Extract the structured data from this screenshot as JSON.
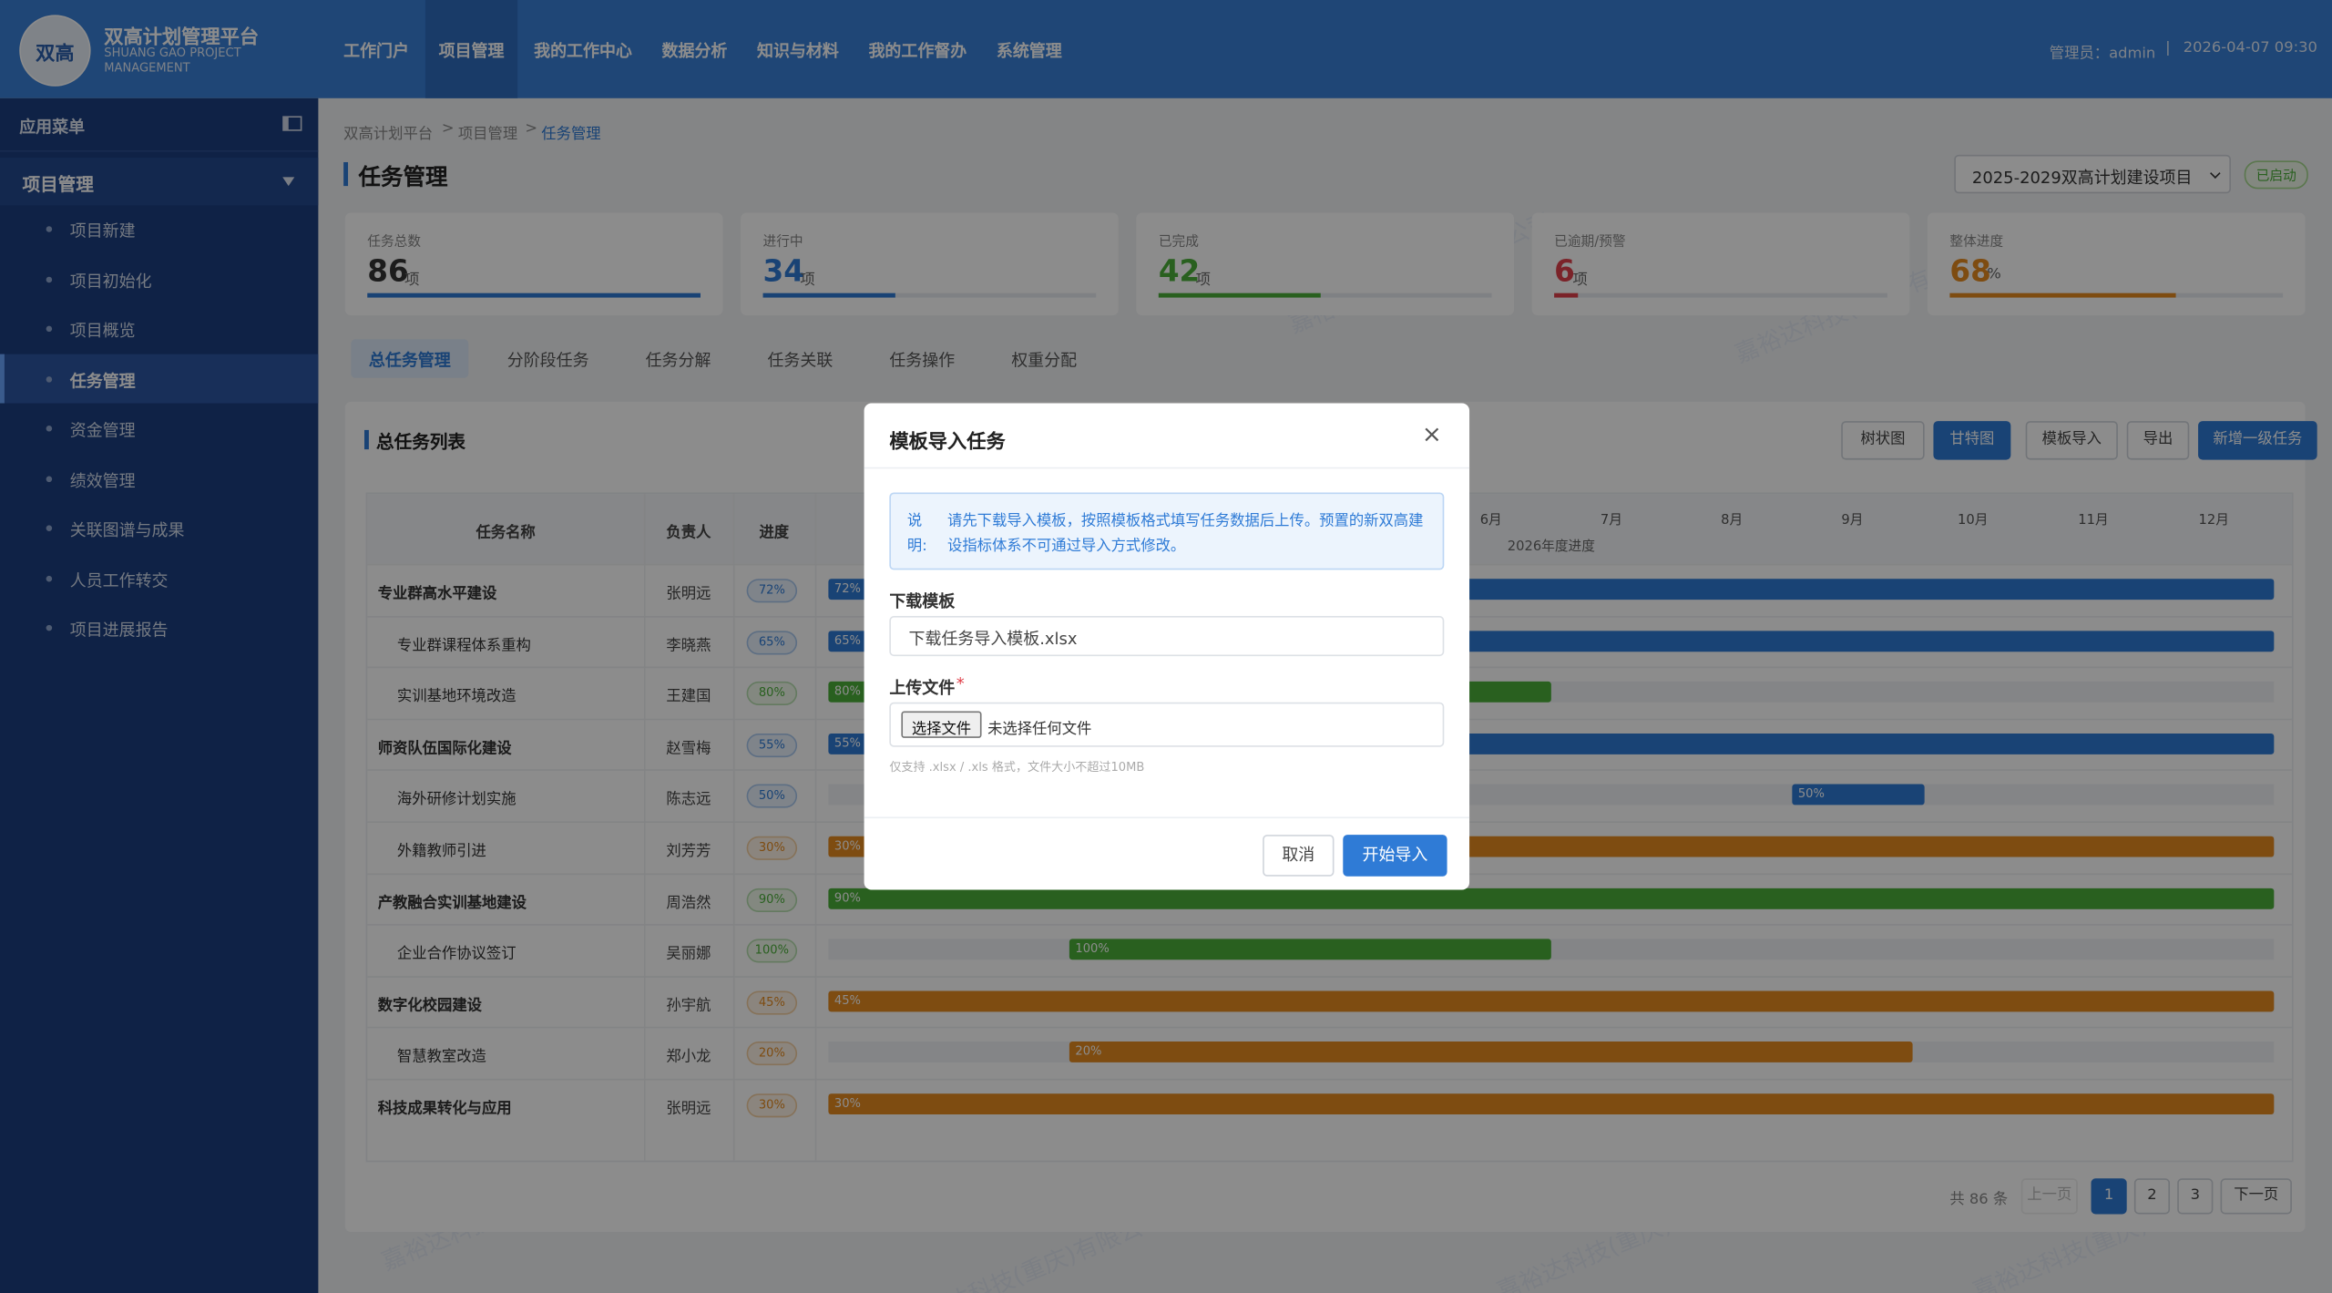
{
  "header": {
    "logo": "双高",
    "title": "双高计划管理平台",
    "subtitle": "SHUANG GAO PROJECT MANAGEMENT",
    "nav": [
      "工作门户",
      "项目管理",
      "我的工作中心",
      "数据分析",
      "知识与材料",
      "我的工作督办",
      "系统管理"
    ],
    "user": "管理员：admin",
    "separator": "|",
    "datetime": "2026-04-07 09:30"
  },
  "sidebar": {
    "menu_title": "应用菜单",
    "group": "项目管理",
    "items": [
      "项目新建",
      "项目初始化",
      "项目概览",
      "任务管理",
      "资金管理",
      "绩效管理",
      "关联图谱与成果",
      "人员工作转交",
      "项目进展报告"
    ]
  },
  "breadcrumb": {
    "items": [
      "双高计划平台",
      "项目管理",
      "任务管理"
    ],
    "separator": ">"
  },
  "page_title": "任务管理",
  "project_select": "2025-2029双高计划建设项目",
  "project_status": "已启动",
  "stats": [
    {
      "label": "任务总数",
      "value": 86,
      "unit": "项",
      "color": "#2f7bd6"
    },
    {
      "label": "进行中",
      "value": 34,
      "unit": "项",
      "color": "#2f7bd6"
    },
    {
      "label": "已完成",
      "value": 42,
      "unit": "项",
      "color": "#4caf3a"
    },
    {
      "label": "已逾期/预警",
      "value": 6,
      "unit": "项",
      "color": "#e0414b"
    },
    {
      "label": "整体进度",
      "value": 68,
      "unit": "%",
      "color": "#e58a1f"
    }
  ],
  "tabs": [
    "总任务管理",
    "分阶段任务",
    "任务分解",
    "任务关联",
    "任务操作",
    "权重分配"
  ],
  "section_title": "总任务列表",
  "toolbar": [
    "树状图",
    "甘特图",
    "模板导入",
    "导出",
    "新增一级任务"
  ],
  "table": {
    "columns": [
      "任务名称",
      "负责人",
      "进度"
    ],
    "months": [
      "6月",
      "7月",
      "8月",
      "9月",
      "10月",
      "11月",
      "12月"
    ],
    "year_label": "2026年度进度",
    "rows": [
      {
        "name": "专业群高水平建设",
        "owner": "张明远",
        "progress": 72,
        "progress_label": "72%",
        "level": 1,
        "start_month": 1,
        "end_month": 12
      },
      {
        "name": "专业群课程体系重构",
        "owner": "李晓燕",
        "progress": 65,
        "progress_label": "65%",
        "level": 2,
        "start_month": 1,
        "end_month": 12
      },
      {
        "name": "实训基地环境改造",
        "owner": "王建国",
        "progress": 80,
        "progress_label": "80%",
        "level": 2,
        "start_month": 1,
        "end_month": 6
      },
      {
        "name": "师资队伍国际化建设",
        "owner": "赵雪梅",
        "progress": 55,
        "progress_label": "55%",
        "level": 1,
        "start_month": 1,
        "end_month": 12
      },
      {
        "name": "海外研修计划实施",
        "owner": "陈志远",
        "progress": 50,
        "progress_label": "50%",
        "level": 2,
        "start_month": 9,
        "end_month": 9.1
      },
      {
        "name": "外籍教师引进",
        "owner": "刘芳芳",
        "progress": 30,
        "progress_label": "30%",
        "level": 2,
        "start_month": 1,
        "end_month": 12
      },
      {
        "name": "产教融合实训基地建设",
        "owner": "周浩然",
        "progress": 90,
        "progress_label": "90%",
        "level": 1,
        "start_month": 1,
        "end_month": 12
      },
      {
        "name": "企业合作协议签订",
        "owner": "吴丽娜",
        "progress": 100,
        "progress_label": "100%",
        "level": 2,
        "start_month": 3,
        "end_month": 6
      },
      {
        "name": "数字化校园建设",
        "owner": "孙宇航",
        "progress": 45,
        "progress_label": "45%",
        "level": 1,
        "start_month": 1,
        "end_month": 12
      },
      {
        "name": "智慧教室改造",
        "owner": "郑小龙",
        "progress": 20,
        "progress_label": "20%",
        "level": 2,
        "start_month": 3,
        "end_month": 9
      },
      {
        "name": "科技成果转化与应用",
        "owner": "张明远",
        "progress": 30,
        "progress_label": "30%",
        "level": 1,
        "start_month": 1,
        "end_month": 12
      }
    ]
  },
  "pagination": {
    "total": "共 86 条",
    "prev": "上一页",
    "pages": [
      "1",
      "2",
      "3"
    ],
    "next": "下一页"
  },
  "watermark": "嘉裕达科技(重庆)有限公司",
  "modal": {
    "title": "模板导入任务",
    "close": "×",
    "note_label": "说明:",
    "note": "请先下载导入模板，按照模板格式填写任务数据后上传。预置的新双高建设指标体系不可通过导入方式修改。",
    "download_label": "下载模板",
    "download_file": "下载任务导入模板.xlsx",
    "upload_label": "上传文件",
    "required": "*",
    "file_button": "选择文件",
    "file_status": "未选择任何文件",
    "hint": "仅支持 .xlsx / .xls 格式，文件大小不超过10MB",
    "cancel": "取消",
    "submit": "开始导入"
  }
}
